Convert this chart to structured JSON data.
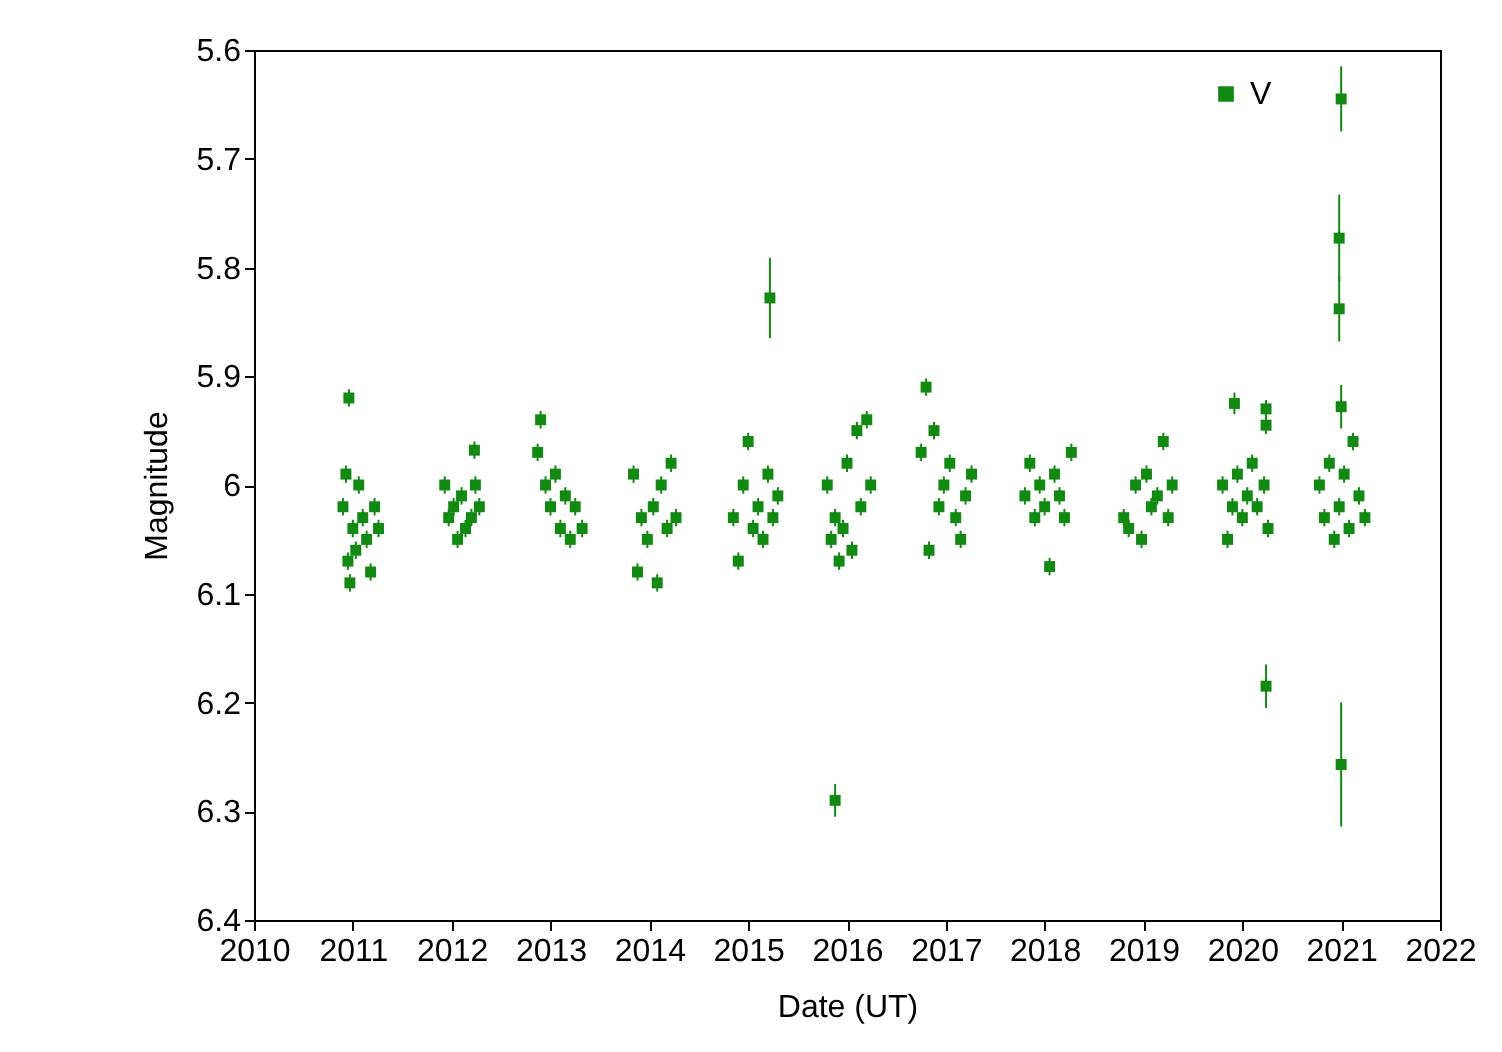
{
  "chart_data": {
    "type": "scatter",
    "xlabel": "Date (UT)",
    "ylabel": "Magnitude",
    "xlim": [
      2010,
      2022
    ],
    "xticks": [
      2010,
      2011,
      2012,
      2013,
      2014,
      2015,
      2016,
      2017,
      2018,
      2019,
      2020,
      2021,
      2022
    ],
    "ylim": [
      6.4,
      5.6
    ],
    "yticks": [
      5.6,
      5.7,
      5.8,
      5.9,
      6,
      6.1,
      6.2,
      6.3,
      6.4
    ],
    "legend": "top right",
    "marker": "square",
    "grid": false,
    "series": [
      {
        "name": "V",
        "color": "#108a10",
        "x": [
          2010.9,
          2010.93,
          2010.95,
          2010.97,
          2011.0,
          2011.03,
          2011.06,
          2011.1,
          2011.14,
          2011.18,
          2011.22,
          2011.26,
          2010.96,
          2011.93,
          2011.97,
          2012.02,
          2012.06,
          2012.1,
          2012.14,
          2012.2,
          2012.24,
          2012.28,
          2012.23,
          2012.87,
          2012.9,
          2012.95,
          2013.0,
          2013.05,
          2013.1,
          2013.15,
          2013.2,
          2013.25,
          2013.32,
          2013.84,
          2013.88,
          2013.92,
          2013.98,
          2014.04,
          2014.08,
          2014.12,
          2014.18,
          2014.22,
          2014.27,
          2014.85,
          2014.9,
          2014.95,
          2015.0,
          2015.05,
          2015.1,
          2015.15,
          2015.2,
          2015.25,
          2015.3,
          2015.22,
          2015.8,
          2015.84,
          2015.88,
          2015.92,
          2015.96,
          2016.0,
          2016.05,
          2016.1,
          2016.14,
          2016.2,
          2016.24,
          2015.88,
          2016.75,
          2016.8,
          2016.83,
          2016.88,
          2016.93,
          2016.98,
          2017.04,
          2017.1,
          2017.15,
          2017.2,
          2017.26,
          2017.8,
          2017.85,
          2017.9,
          2017.95,
          2018.0,
          2018.05,
          2018.1,
          2018.15,
          2018.2,
          2018.27,
          2018.8,
          2018.85,
          2018.92,
          2018.98,
          2019.03,
          2019.08,
          2019.14,
          2019.2,
          2019.25,
          2019.29,
          2019.8,
          2019.85,
          2019.9,
          2019.95,
          2020.0,
          2020.05,
          2020.1,
          2020.15,
          2020.22,
          2020.26,
          2019.92,
          2020.24,
          2020.24,
          2020.24,
          2020.78,
          2020.83,
          2020.88,
          2020.93,
          2020.98,
          2021.03,
          2021.08,
          2021.12,
          2021.18,
          2021.24,
          2021.0,
          2020.98,
          2020.98,
          2021.0,
          2021.0
        ],
        "values": [
          6.02,
          5.99,
          6.07,
          6.09,
          6.04,
          6.06,
          6.0,
          6.03,
          6.05,
          6.08,
          6.02,
          6.04,
          5.92,
          6.0,
          6.03,
          6.02,
          6.05,
          6.01,
          6.04,
          6.03,
          6.0,
          6.02,
          5.968,
          5.97,
          5.94,
          6.0,
          6.02,
          5.99,
          6.04,
          6.01,
          6.05,
          6.02,
          6.04,
          5.99,
          6.08,
          6.03,
          6.05,
          6.02,
          6.09,
          6.0,
          6.04,
          5.98,
          6.03,
          6.03,
          6.07,
          6.0,
          5.96,
          6.04,
          6.02,
          6.05,
          5.99,
          6.03,
          6.01,
          5.828,
          6.0,
          6.05,
          6.03,
          6.07,
          6.04,
          5.98,
          6.06,
          5.95,
          6.02,
          5.94,
          6.0,
          6.29,
          5.97,
          5.91,
          6.06,
          5.95,
          6.02,
          6.0,
          5.98,
          6.03,
          6.05,
          6.01,
          5.99,
          6.01,
          5.98,
          6.03,
          6.0,
          6.02,
          6.075,
          5.99,
          6.01,
          6.03,
          5.97,
          6.03,
          6.04,
          6.0,
          6.05,
          5.99,
          6.02,
          6.01,
          5.96,
          6.03,
          6.0,
          6.0,
          6.05,
          6.02,
          5.99,
          6.03,
          6.01,
          5.98,
          6.02,
          6.0,
          6.04,
          5.925,
          5.93,
          5.945,
          6.185,
          6.0,
          6.03,
          5.98,
          6.05,
          6.02,
          5.99,
          6.04,
          5.96,
          6.01,
          6.03,
          5.645,
          5.773,
          5.838,
          5.928,
          6.257
        ],
        "errors": [
          0.008,
          0.008,
          0.008,
          0.008,
          0.008,
          0.008,
          0.008,
          0.008,
          0.008,
          0.008,
          0.008,
          0.008,
          0.008,
          0.008,
          0.008,
          0.008,
          0.008,
          0.008,
          0.008,
          0.008,
          0.008,
          0.008,
          0.008,
          0.008,
          0.008,
          0.008,
          0.008,
          0.008,
          0.008,
          0.008,
          0.008,
          0.008,
          0.008,
          0.008,
          0.008,
          0.008,
          0.008,
          0.008,
          0.008,
          0.008,
          0.008,
          0.008,
          0.008,
          0.008,
          0.008,
          0.008,
          0.008,
          0.008,
          0.008,
          0.008,
          0.008,
          0.008,
          0.008,
          0.037,
          0.008,
          0.008,
          0.008,
          0.008,
          0.008,
          0.008,
          0.008,
          0.008,
          0.008,
          0.008,
          0.008,
          0.015,
          0.008,
          0.008,
          0.008,
          0.008,
          0.008,
          0.008,
          0.008,
          0.008,
          0.008,
          0.008,
          0.008,
          0.008,
          0.008,
          0.008,
          0.008,
          0.008,
          0.008,
          0.008,
          0.008,
          0.008,
          0.008,
          0.008,
          0.008,
          0.008,
          0.008,
          0.008,
          0.008,
          0.008,
          0.008,
          0.008,
          0.008,
          0.008,
          0.008,
          0.008,
          0.008,
          0.008,
          0.008,
          0.008,
          0.008,
          0.008,
          0.008,
          0.01,
          0.008,
          0.008,
          0.02,
          0.008,
          0.008,
          0.008,
          0.008,
          0.008,
          0.008,
          0.008,
          0.008,
          0.008,
          0.008,
          0.03,
          0.04,
          0.03,
          0.02,
          0.057
        ]
      }
    ]
  }
}
